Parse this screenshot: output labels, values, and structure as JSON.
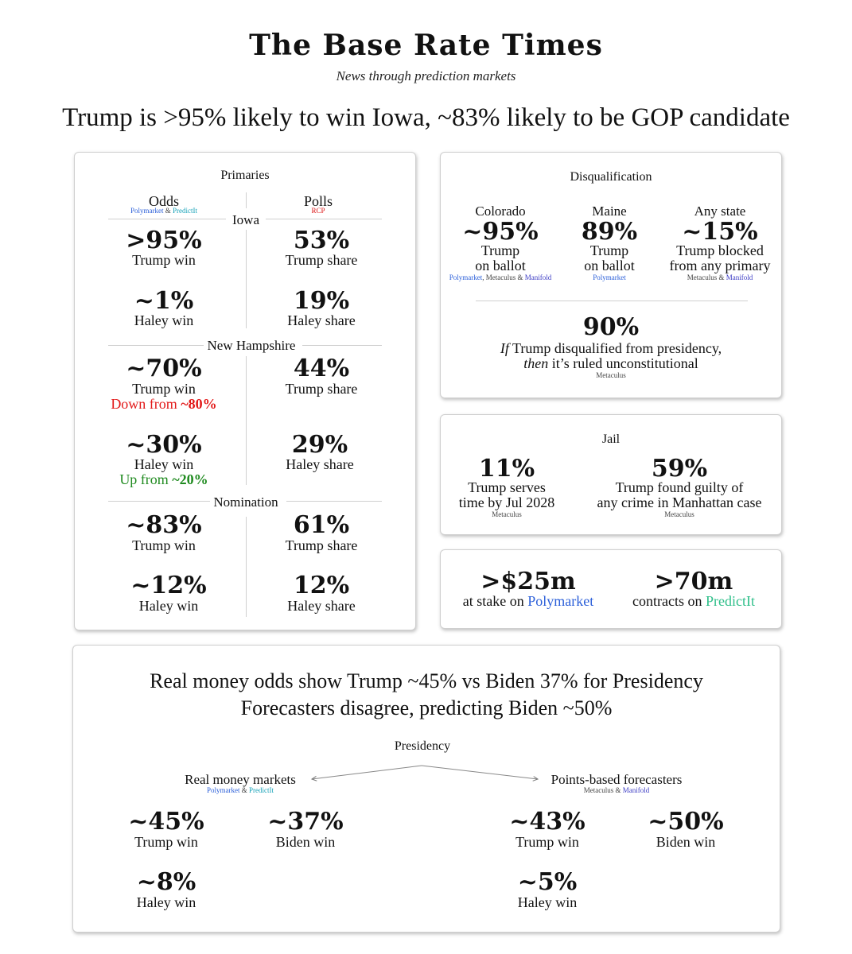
{
  "masthead": {
    "title": "The Base Rate Times",
    "tagline": "News through prediction markets"
  },
  "headline": "Trump is >95% likely to win Iowa, ~83% likely to be GOP candidate",
  "primaries": {
    "title": "Primaries",
    "odds_label": "Odds",
    "odds_src_a": "Polymarket",
    "odds_src_amp": " & ",
    "odds_src_b": "PredictIt",
    "polls_label": "Polls",
    "polls_src": "RCP",
    "iowa": {
      "label": "Iowa",
      "trump_odds": ">95%",
      "trump_odds_label": "Trump win",
      "trump_poll": "53%",
      "trump_poll_label": "Trump share",
      "haley_odds": "~1%",
      "haley_odds_label": "Haley win",
      "haley_poll": "19%",
      "haley_poll_label": "Haley share"
    },
    "nh": {
      "label": "New Hampshire",
      "trump_odds": "~70%",
      "trump_odds_label": "Trump win",
      "trump_change_text": "Down from ",
      "trump_change_value": "~80%",
      "trump_poll": "44%",
      "trump_poll_label": "Trump share",
      "haley_odds": "~30%",
      "haley_odds_label": "Haley win",
      "haley_change_text": "Up from ",
      "haley_change_value": "~20%",
      "haley_poll": "29%",
      "haley_poll_label": "Haley share"
    },
    "nomination": {
      "label": "Nomination",
      "trump_odds": "~83%",
      "trump_odds_label": "Trump win",
      "trump_poll": "61%",
      "trump_poll_label": "Trump share",
      "haley_odds": "~12%",
      "haley_odds_label": "Haley win",
      "haley_poll": "12%",
      "haley_poll_label": "Haley share"
    }
  },
  "disqualification": {
    "title": "Disqualification",
    "colorado": {
      "state": "Colorado",
      "value": "~95%",
      "line1": "Trump",
      "line2": "on ballot",
      "src_a": "Polymarket",
      "src_mid": ", Metaculus & ",
      "src_b": "Manifold"
    },
    "maine": {
      "state": "Maine",
      "value": "89%",
      "line1": "Trump",
      "line2": "on ballot",
      "src": "Polymarket"
    },
    "any": {
      "state": "Any state",
      "value": "~15%",
      "line1": "Trump blocked",
      "line2": "from any primary",
      "src_a": "Metaculus & ",
      "src_b": "Manifold"
    },
    "court": {
      "value": "90%",
      "if": "If",
      "line1_rest": " Trump disqualified from presidency,",
      "then": "then",
      "line2_rest": " it’s ruled unconstitutional",
      "src": "Metaculus"
    }
  },
  "jail": {
    "title": "Jail",
    "serve": {
      "value": "11%",
      "line1": "Trump serves",
      "line2": "time by Jul 2028",
      "src": "Metaculus"
    },
    "guilty": {
      "value": "59%",
      "line1": "Trump found guilty of",
      "line2": "any crime in Manhattan case",
      "src": "Metaculus"
    }
  },
  "stakes": {
    "poly_value": ">$25m",
    "poly_text": "at stake on ",
    "poly_name": "Polymarket",
    "pred_value": ">70m",
    "pred_text": "contracts on ",
    "pred_name": "PredictIt"
  },
  "presidency": {
    "headline1": "Real money odds show Trump ~45% vs Biden 37% for Presidency",
    "headline2": "Forecasters disagree, predicting Biden ~50%",
    "tree_root": "Presidency",
    "left_label": "Real money markets",
    "left_src_a": "Polymarket",
    "left_src_amp": " & ",
    "left_src_b": "PredictIt",
    "right_label": "Points-based forecasters",
    "right_src_a": "Metaculus & ",
    "right_src_b": "Manifold",
    "money": {
      "trump": "~45%",
      "trump_label": "Trump win",
      "biden": "~37%",
      "biden_label": "Biden win",
      "haley": "~8%",
      "haley_label": "Haley win"
    },
    "forecast": {
      "trump": "~43%",
      "trump_label": "Trump win",
      "biden": "~50%",
      "biden_label": "Biden win",
      "haley": "~5%",
      "haley_label": "Haley win"
    }
  }
}
